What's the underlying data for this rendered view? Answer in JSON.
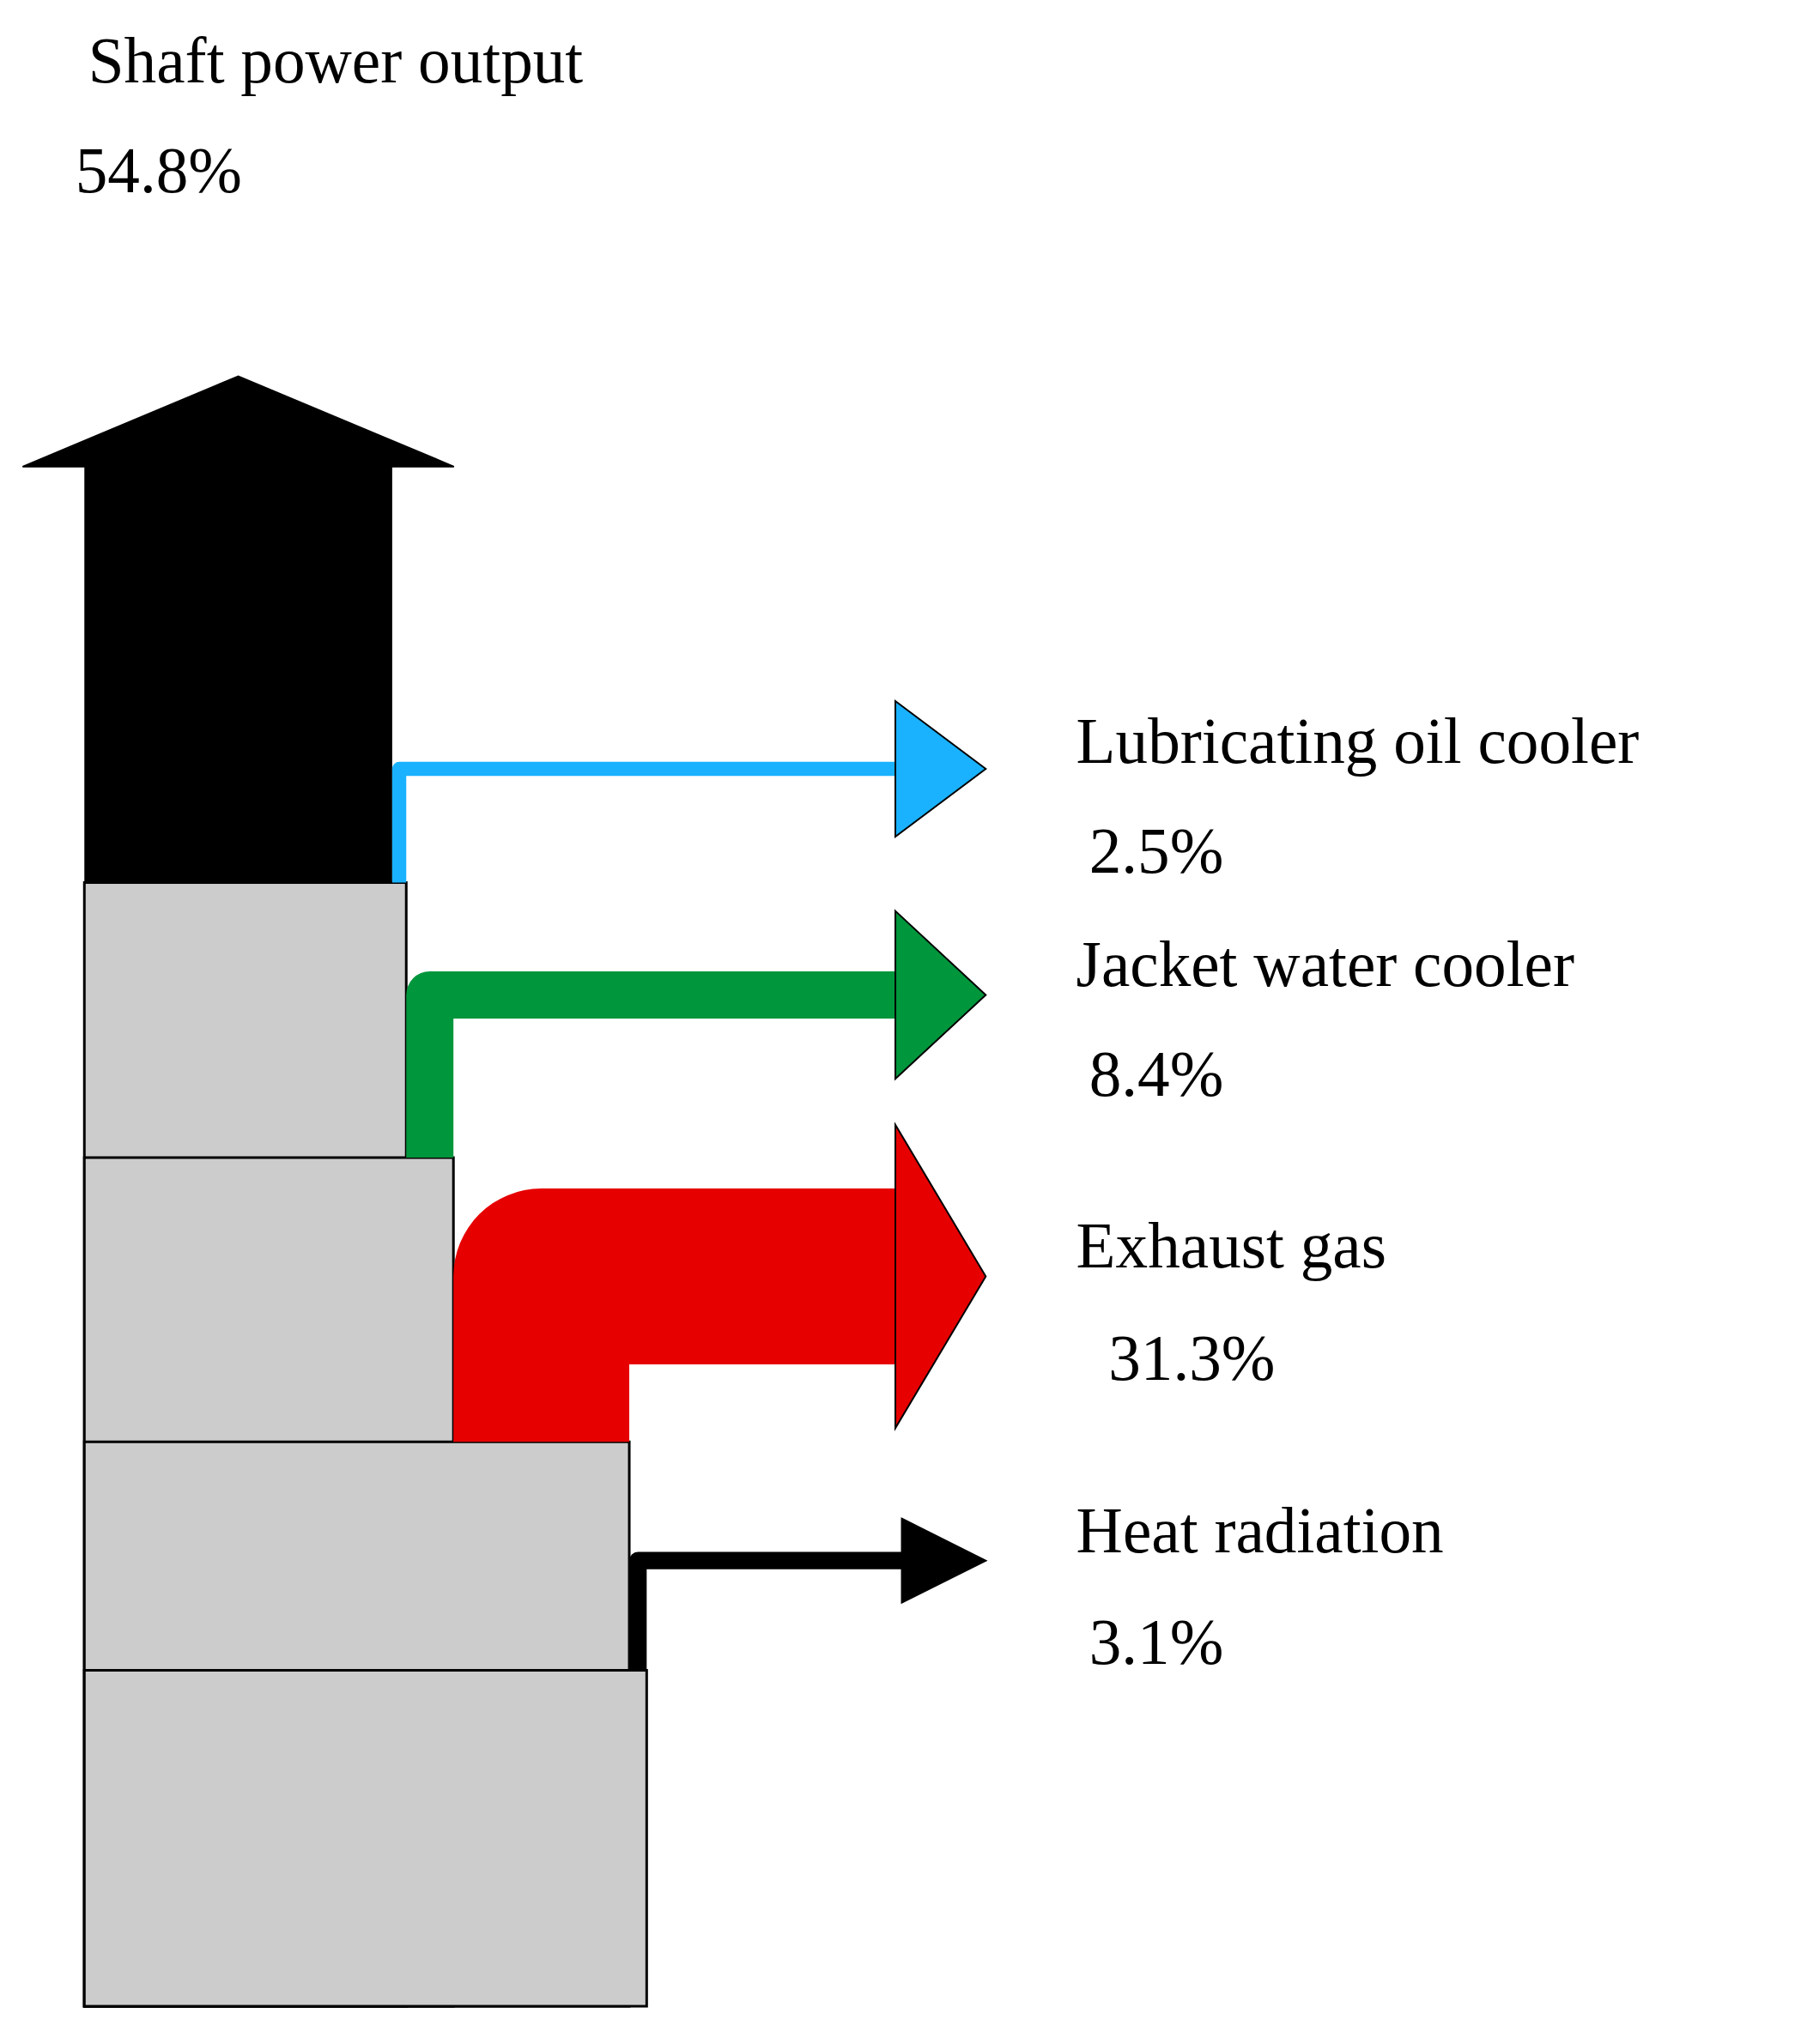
{
  "chart_data": {
    "type": "other",
    "categories": [
      "Shaft power output",
      "Lubricating oil cooler",
      "Jacket water cooler",
      "Exhaust gas",
      "Heat radiation"
    ],
    "values": [
      54.8,
      2.5,
      8.4,
      31.3,
      3.1
    ],
    "value_labels": [
      "54.8%",
      "2.5%",
      "8.4%",
      "31.3%",
      "3.1%"
    ],
    "colors": [
      "#000000",
      "#1ab2ff",
      "#00963c",
      "#e60000",
      "#000000"
    ]
  }
}
